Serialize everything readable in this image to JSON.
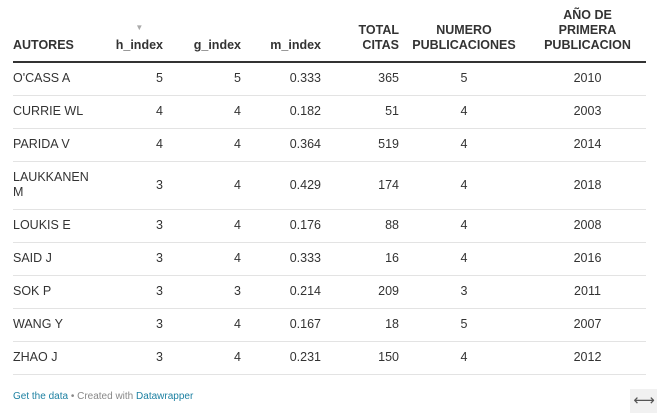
{
  "table": {
    "headers": {
      "autores": "AUTORES",
      "h_index": "h_index",
      "g_index": "g_index",
      "m_index": "m_index",
      "total_citas_1": "TOTAL",
      "total_citas_2": "CITAS",
      "numero_1": "NUMERO",
      "numero_2": "PUBLICACIONES",
      "anio_1": "AÑO DE",
      "anio_2": "PRIMERA",
      "anio_3": "PUBLICACION"
    },
    "sort_indicator": "▼",
    "rows": [
      {
        "autor": "O'CASS A",
        "h": "5",
        "g": "5",
        "m": "0.333",
        "citas": "365",
        "pubs": "5",
        "anio": "2010"
      },
      {
        "autor": "CURRIE WL",
        "h": "4",
        "g": "4",
        "m": "0.182",
        "citas": "51",
        "pubs": "4",
        "anio": "2003"
      },
      {
        "autor": "PARIDA V",
        "h": "4",
        "g": "4",
        "m": "0.364",
        "citas": "519",
        "pubs": "4",
        "anio": "2014"
      },
      {
        "autor": "LAUKKANEN M",
        "h": "3",
        "g": "4",
        "m": "0.429",
        "citas": "174",
        "pubs": "4",
        "anio": "2018"
      },
      {
        "autor": "LOUKIS E",
        "h": "3",
        "g": "4",
        "m": "0.176",
        "citas": "88",
        "pubs": "4",
        "anio": "2008"
      },
      {
        "autor": "SAID J",
        "h": "3",
        "g": "4",
        "m": "0.333",
        "citas": "16",
        "pubs": "4",
        "anio": "2016"
      },
      {
        "autor": "SOK P",
        "h": "3",
        "g": "3",
        "m": "0.214",
        "citas": "209",
        "pubs": "3",
        "anio": "2011"
      },
      {
        "autor": "WANG Y",
        "h": "3",
        "g": "4",
        "m": "0.167",
        "citas": "18",
        "pubs": "5",
        "anio": "2007"
      },
      {
        "autor": "ZHAO J",
        "h": "3",
        "g": "4",
        "m": "0.231",
        "citas": "150",
        "pubs": "4",
        "anio": "2012"
      }
    ]
  },
  "footer": {
    "get_data": "Get the data",
    "separator": " • Created with ",
    "datawrapper": "Datawrapper"
  },
  "expand_icon": "⟷",
  "colors": {
    "text": "#333333",
    "link": "#1d81a2",
    "muted": "#888888"
  }
}
